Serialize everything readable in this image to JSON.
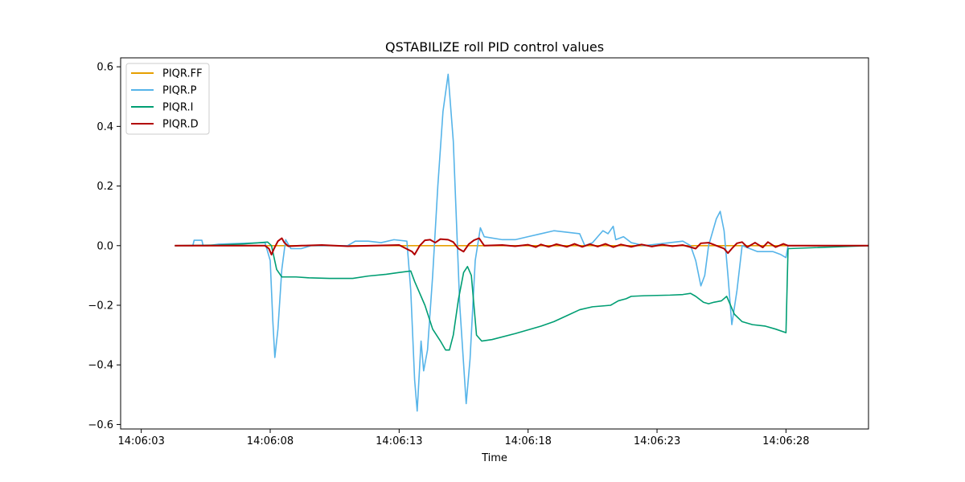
{
  "chart_data": {
    "type": "line",
    "title": "QSTABILIZE roll PID control values",
    "xlabel": "Time",
    "ylabel": "",
    "x_ticks": [
      "14:06:03",
      "14:06:08",
      "14:06:13",
      "14:06:18",
      "14:06:23",
      "14:06:28"
    ],
    "x_tick_values": [
      3,
      8,
      13,
      18,
      23,
      28
    ],
    "y_ticks": [
      -0.6,
      -0.4,
      -0.2,
      0.0,
      0.2,
      0.4,
      0.6
    ],
    "y_tick_labels": [
      "−0.6",
      "−0.4",
      "−0.2",
      "0.0",
      "0.2",
      "0.4",
      "0.6"
    ],
    "xlim": [
      2.2,
      31.2
    ],
    "ylim": [
      -0.615,
      0.63
    ],
    "x_unit": "seconds after 14:06:00",
    "grid": false,
    "legend_position": "top-left",
    "series": [
      {
        "name": "PIQR.FF",
        "color": "#e69f00",
        "points": [
          [
            4.3,
            0.0
          ],
          [
            31.2,
            0.0
          ]
        ]
      },
      {
        "name": "PIQR.P",
        "color": "#56b4e9",
        "points": [
          [
            4.3,
            0.0
          ],
          [
            5.0,
            0.0
          ],
          [
            5.05,
            0.018
          ],
          [
            5.35,
            0.018
          ],
          [
            5.4,
            0.0
          ],
          [
            5.6,
            0.0
          ],
          [
            6.0,
            0.005
          ],
          [
            7.0,
            0.008
          ],
          [
            7.8,
            0.01
          ],
          [
            8.0,
            -0.05
          ],
          [
            8.1,
            -0.25
          ],
          [
            8.18,
            -0.375
          ],
          [
            8.3,
            -0.28
          ],
          [
            8.45,
            -0.08
          ],
          [
            8.6,
            0.02
          ],
          [
            8.8,
            -0.01
          ],
          [
            9.2,
            -0.01
          ],
          [
            9.6,
            0.0
          ],
          [
            10.3,
            0.0
          ],
          [
            11.0,
            0.0
          ],
          [
            11.3,
            0.015
          ],
          [
            11.8,
            0.015
          ],
          [
            12.3,
            0.01
          ],
          [
            12.8,
            0.02
          ],
          [
            13.3,
            0.015
          ],
          [
            13.45,
            -0.15
          ],
          [
            13.6,
            -0.45
          ],
          [
            13.7,
            -0.555
          ],
          [
            13.85,
            -0.32
          ],
          [
            13.95,
            -0.42
          ],
          [
            14.1,
            -0.35
          ],
          [
            14.3,
            -0.1
          ],
          [
            14.5,
            0.2
          ],
          [
            14.7,
            0.45
          ],
          [
            14.9,
            0.575
          ],
          [
            15.1,
            0.35
          ],
          [
            15.35,
            -0.2
          ],
          [
            15.6,
            -0.53
          ],
          [
            15.75,
            -0.38
          ],
          [
            15.95,
            -0.05
          ],
          [
            16.15,
            0.06
          ],
          [
            16.3,
            0.03
          ],
          [
            17.0,
            0.02
          ],
          [
            17.5,
            0.02
          ],
          [
            18.0,
            0.03
          ],
          [
            18.5,
            0.04
          ],
          [
            19.0,
            0.05
          ],
          [
            19.5,
            0.045
          ],
          [
            20.0,
            0.04
          ],
          [
            20.2,
            0.0
          ],
          [
            20.5,
            0.01
          ],
          [
            20.7,
            0.03
          ],
          [
            20.9,
            0.05
          ],
          [
            21.1,
            0.04
          ],
          [
            21.3,
            0.065
          ],
          [
            21.4,
            0.02
          ],
          [
            21.7,
            0.03
          ],
          [
            22.0,
            0.01
          ],
          [
            22.5,
            0.0
          ],
          [
            23.0,
            0.005
          ],
          [
            23.5,
            0.01
          ],
          [
            24.0,
            0.015
          ],
          [
            24.3,
            0.0
          ],
          [
            24.5,
            -0.05
          ],
          [
            24.7,
            -0.135
          ],
          [
            24.85,
            -0.1
          ],
          [
            25.0,
            0.0
          ],
          [
            25.3,
            0.09
          ],
          [
            25.45,
            0.115
          ],
          [
            25.6,
            0.05
          ],
          [
            25.75,
            -0.1
          ],
          [
            25.9,
            -0.265
          ],
          [
            26.1,
            -0.15
          ],
          [
            26.3,
            0.0
          ],
          [
            26.6,
            -0.01
          ],
          [
            26.9,
            -0.02
          ],
          [
            27.2,
            -0.02
          ],
          [
            27.5,
            -0.02
          ],
          [
            27.8,
            -0.03
          ],
          [
            28.0,
            -0.04
          ],
          [
            28.08,
            0.0
          ],
          [
            31.2,
            0.0
          ]
        ]
      },
      {
        "name": "PIQR.I",
        "color": "#009e73",
        "points": [
          [
            4.3,
            0.0
          ],
          [
            6.0,
            0.002
          ],
          [
            7.0,
            0.006
          ],
          [
            7.9,
            0.012
          ],
          [
            8.05,
            0.0
          ],
          [
            8.25,
            -0.08
          ],
          [
            8.45,
            -0.105
          ],
          [
            9.0,
            -0.105
          ],
          [
            9.5,
            -0.108
          ],
          [
            10.3,
            -0.11
          ],
          [
            11.2,
            -0.11
          ],
          [
            11.8,
            -0.102
          ],
          [
            12.5,
            -0.096
          ],
          [
            13.0,
            -0.09
          ],
          [
            13.45,
            -0.085
          ],
          [
            13.6,
            -0.12
          ],
          [
            14.0,
            -0.2
          ],
          [
            14.3,
            -0.28
          ],
          [
            14.6,
            -0.32
          ],
          [
            14.8,
            -0.35
          ],
          [
            14.95,
            -0.35
          ],
          [
            15.1,
            -0.3
          ],
          [
            15.3,
            -0.18
          ],
          [
            15.5,
            -0.09
          ],
          [
            15.65,
            -0.07
          ],
          [
            15.8,
            -0.1
          ],
          [
            16.0,
            -0.3
          ],
          [
            16.2,
            -0.32
          ],
          [
            16.6,
            -0.315
          ],
          [
            17.5,
            -0.295
          ],
          [
            18.5,
            -0.27
          ],
          [
            19.0,
            -0.255
          ],
          [
            19.5,
            -0.235
          ],
          [
            20.0,
            -0.215
          ],
          [
            20.5,
            -0.205
          ],
          [
            21.2,
            -0.2
          ],
          [
            21.5,
            -0.185
          ],
          [
            21.8,
            -0.178
          ],
          [
            22.0,
            -0.17
          ],
          [
            22.5,
            -0.168
          ],
          [
            23.5,
            -0.166
          ],
          [
            24.0,
            -0.164
          ],
          [
            24.3,
            -0.16
          ],
          [
            24.5,
            -0.17
          ],
          [
            24.8,
            -0.19
          ],
          [
            25.0,
            -0.195
          ],
          [
            25.2,
            -0.19
          ],
          [
            25.5,
            -0.185
          ],
          [
            25.7,
            -0.17
          ],
          [
            25.85,
            -0.2
          ],
          [
            26.0,
            -0.23
          ],
          [
            26.3,
            -0.255
          ],
          [
            26.7,
            -0.265
          ],
          [
            27.2,
            -0.27
          ],
          [
            27.6,
            -0.28
          ],
          [
            28.0,
            -0.292
          ],
          [
            28.08,
            -0.01
          ],
          [
            31.2,
            0.0
          ]
        ]
      },
      {
        "name": "PIQR.D",
        "color": "#b20000",
        "points": [
          [
            4.3,
            0.0
          ],
          [
            7.8,
            0.0
          ],
          [
            7.95,
            -0.01
          ],
          [
            8.05,
            -0.03
          ],
          [
            8.15,
            -0.01
          ],
          [
            8.3,
            0.015
          ],
          [
            8.45,
            0.025
          ],
          [
            8.55,
            0.01
          ],
          [
            8.7,
            -0.002
          ],
          [
            9.2,
            0.0
          ],
          [
            10.0,
            0.002
          ],
          [
            11.0,
            -0.002
          ],
          [
            12.0,
            0.0
          ],
          [
            13.0,
            0.002
          ],
          [
            13.5,
            -0.02
          ],
          [
            13.6,
            -0.03
          ],
          [
            13.8,
            0.0
          ],
          [
            14.0,
            0.018
          ],
          [
            14.2,
            0.02
          ],
          [
            14.4,
            0.01
          ],
          [
            14.6,
            0.022
          ],
          [
            14.9,
            0.02
          ],
          [
            15.1,
            0.012
          ],
          [
            15.3,
            -0.01
          ],
          [
            15.5,
            -0.02
          ],
          [
            15.7,
            0.005
          ],
          [
            15.9,
            0.018
          ],
          [
            16.1,
            0.025
          ],
          [
            16.3,
            0.0
          ],
          [
            17.0,
            0.002
          ],
          [
            17.5,
            -0.002
          ],
          [
            18.0,
            0.003
          ],
          [
            18.3,
            -0.005
          ],
          [
            18.5,
            0.004
          ],
          [
            18.8,
            -0.004
          ],
          [
            19.1,
            0.005
          ],
          [
            19.5,
            -0.004
          ],
          [
            19.8,
            0.006
          ],
          [
            20.1,
            -0.004
          ],
          [
            20.4,
            0.005
          ],
          [
            20.7,
            -0.003
          ],
          [
            21.0,
            0.006
          ],
          [
            21.3,
            -0.005
          ],
          [
            21.6,
            0.004
          ],
          [
            22.0,
            -0.004
          ],
          [
            22.4,
            0.004
          ],
          [
            22.8,
            -0.003
          ],
          [
            23.2,
            0.003
          ],
          [
            23.6,
            -0.002
          ],
          [
            24.0,
            0.002
          ],
          [
            24.3,
            -0.005
          ],
          [
            24.5,
            -0.01
          ],
          [
            24.7,
            0.008
          ],
          [
            25.0,
            0.01
          ],
          [
            25.3,
            0.0
          ],
          [
            25.6,
            -0.01
          ],
          [
            25.75,
            -0.025
          ],
          [
            25.9,
            -0.01
          ],
          [
            26.1,
            0.008
          ],
          [
            26.3,
            0.012
          ],
          [
            26.5,
            -0.005
          ],
          [
            26.8,
            0.01
          ],
          [
            27.1,
            -0.006
          ],
          [
            27.3,
            0.012
          ],
          [
            27.6,
            -0.005
          ],
          [
            27.9,
            0.006
          ],
          [
            28.08,
            0.0
          ],
          [
            31.2,
            0.0
          ]
        ]
      }
    ]
  }
}
